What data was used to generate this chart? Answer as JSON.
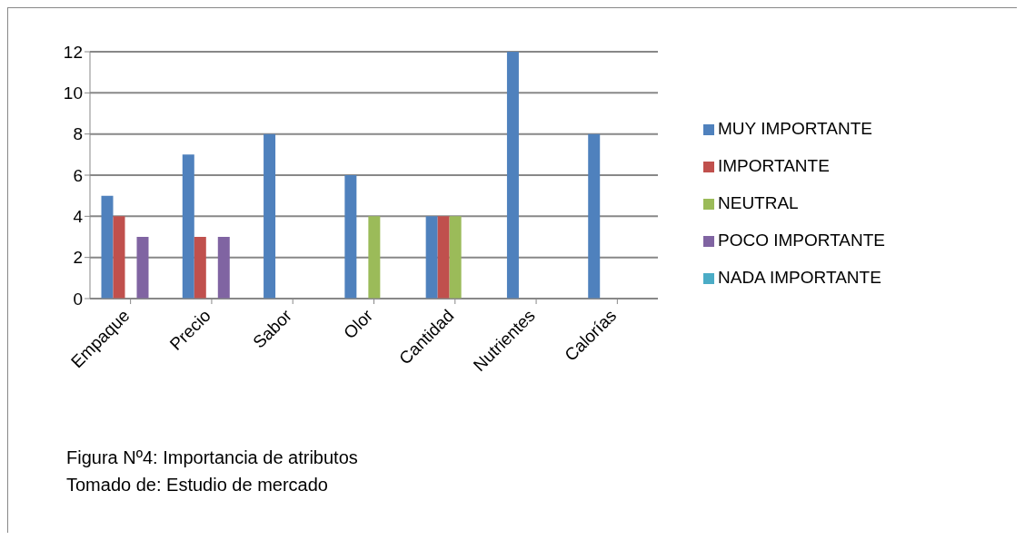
{
  "chart_data": {
    "type": "bar",
    "categories": [
      "Empaque",
      "Precio",
      "Sabor",
      "Olor",
      "Cantidad",
      "Nutrientes",
      "Calorías"
    ],
    "series": [
      {
        "name": "MUY IMPORTANTE",
        "color": "#4f81bd",
        "values": [
          5,
          7,
          8,
          6,
          4,
          12,
          8
        ]
      },
      {
        "name": "IMPORTANTE",
        "color": "#c0504d",
        "values": [
          4,
          3,
          0,
          0,
          4,
          0,
          0
        ]
      },
      {
        "name": "NEUTRAL",
        "color": "#9bbb59",
        "values": [
          0,
          0,
          0,
          4,
          4,
          0,
          0
        ]
      },
      {
        "name": "POCO IMPORTANTE",
        "color": "#8064a2",
        "values": [
          3,
          3,
          0,
          0,
          0,
          0,
          0
        ]
      },
      {
        "name": "NADA IMPORTANTE",
        "color": "#4bacc6",
        "values": [
          0,
          0,
          0,
          0,
          0,
          0,
          0
        ]
      }
    ],
    "ylim": [
      0,
      12
    ],
    "yticks": [
      0,
      2,
      4,
      6,
      8,
      10,
      12
    ],
    "grid": "y",
    "legend": "right",
    "annotations": [
      "Figura Nº4: Importancia de atributos",
      "Tomado de: Estudio de mercado"
    ]
  }
}
